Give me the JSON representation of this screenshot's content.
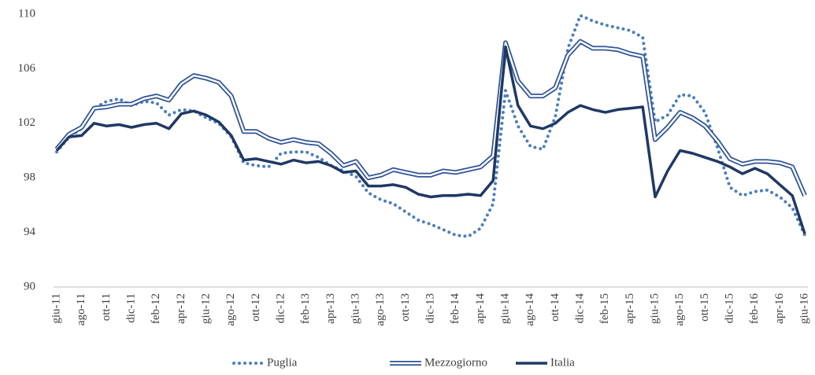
{
  "chart_data": {
    "type": "line",
    "categories": [
      "giu-11",
      null,
      "ago-11",
      null,
      "ott-11",
      null,
      "dic-11",
      null,
      "feb-12",
      null,
      "apr-12",
      null,
      "giu-12",
      null,
      "ago-12",
      null,
      "ott-12",
      null,
      "dic-12",
      null,
      "feb-13",
      null,
      "apr-13",
      null,
      "giu-13",
      null,
      "ago-13",
      null,
      "ott-13",
      null,
      "dic-13",
      null,
      "feb-14",
      null,
      "apr-14",
      null,
      "giu-14",
      null,
      "ago-14",
      null,
      "ott-14",
      null,
      "dic-14",
      null,
      "feb-15",
      null,
      "apr-15",
      null,
      "giu-15",
      null,
      "ago-15",
      null,
      "ott-15",
      null,
      "dic-15",
      null,
      "feb-16",
      null,
      "apr-16",
      null,
      "giu-16"
    ],
    "series": [
      {
        "name": "Puglia",
        "color": "#4a7ebb",
        "style": "dotted",
        "values": [
          99.9,
          101.0,
          101.6,
          103.1,
          103.6,
          103.8,
          103.3,
          103.6,
          103.5,
          102.6,
          103.0,
          102.9,
          102.4,
          102.0,
          101.0,
          99.1,
          98.9,
          98.8,
          99.8,
          99.9,
          99.9,
          99.5,
          98.9,
          98.5,
          98.1,
          96.9,
          96.4,
          96.1,
          95.5,
          94.9,
          94.6,
          94.2,
          93.8,
          93.7,
          94.3,
          96.1,
          104.4,
          101.8,
          100.3,
          100.1,
          102.5,
          107.5,
          109.9,
          109.5,
          109.2,
          109.0,
          108.8,
          108.3,
          102.1,
          102.6,
          104.1,
          104.0,
          102.8,
          100.2,
          97.3,
          96.7,
          97.0,
          97.1,
          96.6,
          95.8,
          93.8
        ]
      },
      {
        "name": "Mezzogiorno",
        "color": "#2f5496",
        "style": "double",
        "values": [
          100.1,
          101.2,
          101.7,
          103.1,
          103.2,
          103.4,
          103.4,
          103.8,
          104.0,
          103.7,
          104.9,
          105.5,
          105.3,
          105.0,
          104.0,
          101.4,
          101.4,
          100.9,
          100.6,
          100.8,
          100.6,
          100.5,
          99.8,
          98.9,
          99.2,
          98.0,
          98.2,
          98.6,
          98.4,
          98.2,
          98.2,
          98.5,
          98.4,
          98.6,
          98.8,
          99.6,
          107.9,
          105.1,
          104.0,
          104.0,
          104.6,
          107.0,
          108.0,
          107.5,
          107.5,
          107.4,
          107.1,
          106.9,
          100.8,
          101.7,
          102.8,
          102.4,
          101.8,
          100.7,
          99.4,
          99.0,
          99.2,
          99.2,
          99.1,
          98.8,
          96.7
        ]
      },
      {
        "name": "Italia",
        "color": "#203864",
        "style": "solid",
        "values": [
          100.0,
          101.0,
          101.1,
          102.0,
          101.8,
          101.9,
          101.7,
          101.9,
          102.0,
          101.6,
          102.7,
          102.9,
          102.6,
          102.1,
          101.1,
          99.3,
          99.4,
          99.2,
          99.0,
          99.3,
          99.1,
          99.2,
          98.9,
          98.4,
          98.5,
          97.4,
          97.4,
          97.5,
          97.3,
          96.8,
          96.6,
          96.7,
          96.7,
          96.8,
          96.7,
          97.8,
          107.6,
          103.3,
          101.8,
          101.6,
          102.0,
          102.8,
          103.3,
          103.0,
          102.8,
          103.0,
          103.1,
          103.2,
          96.6,
          98.5,
          100.0,
          99.8,
          99.5,
          99.2,
          98.8,
          98.3,
          98.7,
          98.3,
          97.5,
          96.7,
          93.9
        ]
      }
    ],
    "ylim": [
      90,
      110
    ],
    "yticks": [
      90,
      94,
      98,
      102,
      106,
      110
    ],
    "grid": false,
    "legend": "bottom"
  }
}
